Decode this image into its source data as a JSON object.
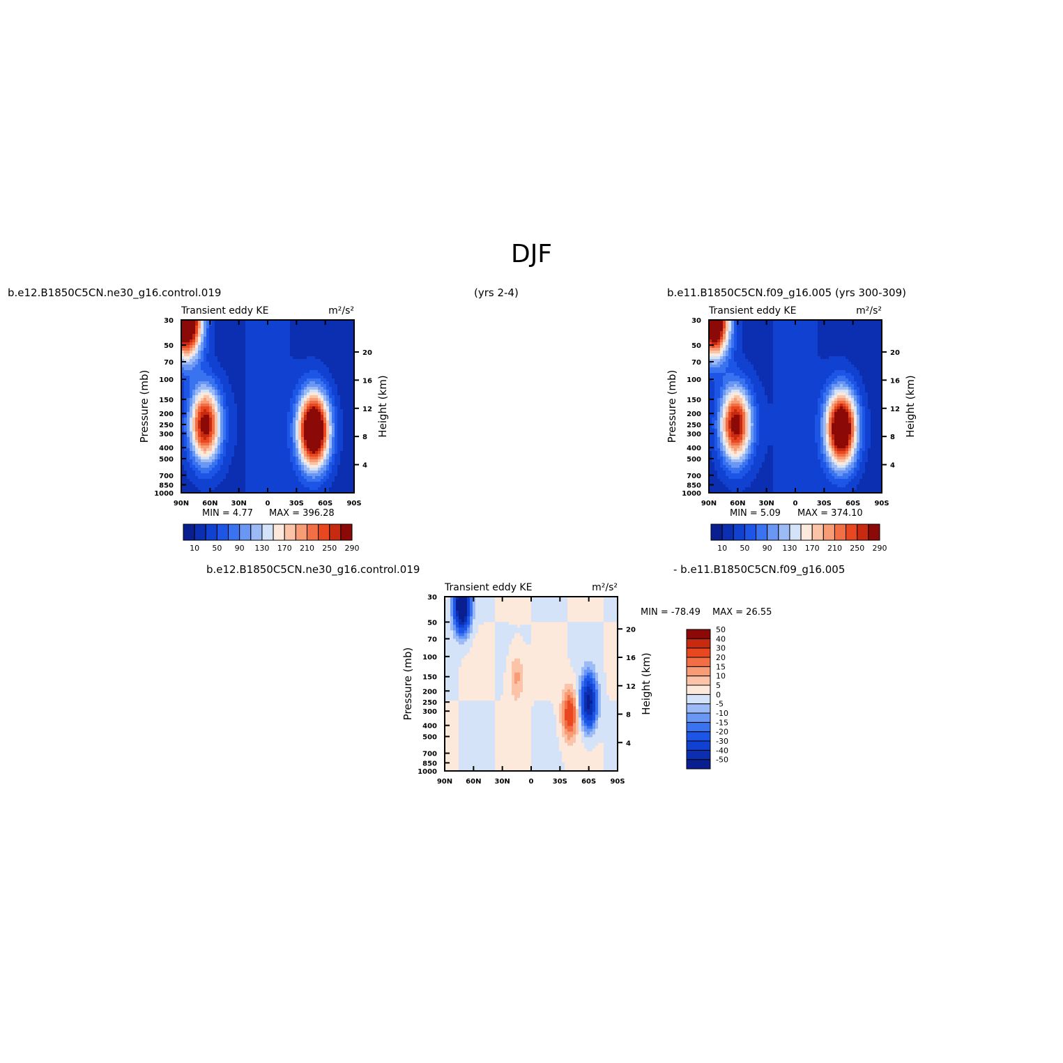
{
  "page_title": "DJF",
  "panels": {
    "top_left": {
      "case_label": "b.e12.B1850C5CN.ne30_g16.control.019",
      "years_label": "(yrs 2-4)",
      "min_label": "MIN =    4.77",
      "max_label": "MAX = 396.28"
    },
    "top_right": {
      "case_label": "b.e11.B1850C5CN.f09_g16.005 (yrs 300-309)",
      "min_label": "MIN =    5.09",
      "max_label": "MAX = 374.10"
    },
    "bottom": {
      "case_label_left": "b.e12.B1850C5CN.ne30_g16.control.019",
      "case_label_right": "-  b.e11.B1850C5CN.f09_g16.005",
      "min_label": "MIN = -78.49",
      "max_label": "MAX =   26.55"
    }
  },
  "chart_data": [
    {
      "type": "heatmap",
      "title": "Transient eddy KE",
      "units": "m²/s²",
      "xlabel": "",
      "ylabel": "Pressure (mb)",
      "ylabel_right": "Height (km)",
      "x_ticks": [
        "90N",
        "60N",
        "30N",
        "0",
        "30S",
        "60S",
        "90S"
      ],
      "y_ticks": [
        30,
        50,
        70,
        100,
        150,
        200,
        250,
        300,
        400,
        500,
        700,
        850,
        1000
      ],
      "y_right_ticks": [
        4,
        8,
        12,
        16,
        20
      ],
      "y_scale": "log",
      "colorbar_levels": [
        10,
        30,
        50,
        70,
        90,
        110,
        130,
        150,
        170,
        190,
        210,
        230,
        250,
        270,
        290
      ],
      "colorbar_labels": [
        "10",
        "50",
        "90",
        "130",
        "170",
        "210",
        "250",
        "290"
      ],
      "min": 4.77,
      "max": 396.28,
      "features": [
        {
          "lat": 65,
          "p": 250,
          "peak": 290
        },
        {
          "lat": -48,
          "p": 280,
          "peak": 380
        },
        {
          "lat": 85,
          "p": 30,
          "peak": 396
        }
      ]
    },
    {
      "type": "heatmap",
      "title": "Transient eddy KE",
      "units": "m²/s²",
      "xlabel": "",
      "ylabel": "Pressure (mb)",
      "ylabel_right": "Height (km)",
      "x_ticks": [
        "90N",
        "60N",
        "30N",
        "0",
        "30S",
        "60S",
        "90S"
      ],
      "y_ticks": [
        30,
        50,
        70,
        100,
        150,
        200,
        250,
        300,
        400,
        500,
        700,
        850,
        1000
      ],
      "y_right_ticks": [
        4,
        8,
        12,
        16,
        20
      ],
      "y_scale": "log",
      "colorbar_levels": [
        10,
        30,
        50,
        70,
        90,
        110,
        130,
        150,
        170,
        190,
        210,
        230,
        250,
        270,
        290
      ],
      "colorbar_labels": [
        "10",
        "50",
        "90",
        "130",
        "170",
        "210",
        "250",
        "290"
      ],
      "min": 5.09,
      "max": 374.1,
      "features": [
        {
          "lat": 62,
          "p": 250,
          "peak": 290
        },
        {
          "lat": -48,
          "p": 270,
          "peak": 360
        },
        {
          "lat": 85,
          "p": 30,
          "peak": 374
        }
      ]
    },
    {
      "type": "heatmap",
      "title": "Transient eddy KE",
      "units": "m²/s²",
      "xlabel": "",
      "ylabel": "Pressure (mb)",
      "ylabel_right": "Height (km)",
      "x_ticks": [
        "90N",
        "60N",
        "30N",
        "0",
        "30S",
        "60S",
        "90S"
      ],
      "y_ticks": [
        30,
        50,
        70,
        100,
        150,
        200,
        250,
        300,
        400,
        500,
        700,
        850,
        1000
      ],
      "y_right_ticks": [
        4,
        8,
        12,
        16,
        20
      ],
      "y_scale": "log",
      "colorbar_levels": [
        -50,
        -40,
        -30,
        -20,
        -15,
        -10,
        -5,
        0,
        5,
        10,
        15,
        20,
        30,
        40,
        50
      ],
      "colorbar_labels": [
        "-50",
        "-40",
        "-30",
        "-20",
        "-15",
        "-10",
        "-5",
        "0",
        "5",
        "10",
        "15",
        "20",
        "30",
        "40",
        "50"
      ],
      "min": -78.49,
      "max": 26.55,
      "features": [
        {
          "lat": 72,
          "p": 35,
          "peak": -78
        },
        {
          "lat": -60,
          "p": 250,
          "peak": -55
        },
        {
          "lat": -40,
          "p": 320,
          "peak": 26
        },
        {
          "lat": 15,
          "p": 150,
          "peak": 12
        }
      ]
    }
  ],
  "colors": {
    "seq_scale": [
      "#0a1f8f",
      "#0b2fb0",
      "#1141d0",
      "#1d55e6",
      "#3a73f0",
      "#6a97f4",
      "#9bbaf6",
      "#d5e3f9",
      "#fde8dc",
      "#fbc4a8",
      "#f89c75",
      "#f26f46",
      "#e8471f",
      "#c72a0f",
      "#8b0a07"
    ],
    "div_scale": [
      "#0a1f8f",
      "#0b2fb0",
      "#1141d0",
      "#1d55e6",
      "#3a73f0",
      "#6a97f4",
      "#9bbaf6",
      "#d5e3f9",
      "#fde8dc",
      "#fbc4a8",
      "#f89c75",
      "#f26f46",
      "#e8471f",
      "#c72a0f",
      "#8b0a07"
    ]
  }
}
